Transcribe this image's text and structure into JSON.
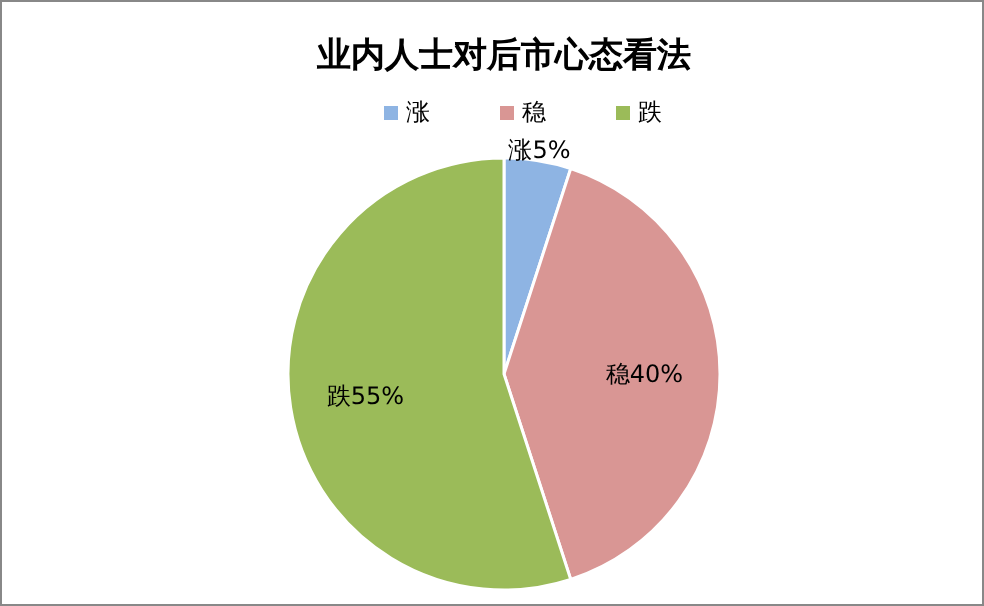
{
  "chart_data": {
    "type": "pie",
    "title": "业内人士对后市心态看法",
    "categories": [
      "涨",
      "稳",
      "跌"
    ],
    "values": [
      5,
      40,
      55
    ],
    "colors": [
      "#8eb4e3",
      "#d99694",
      "#9bbb59"
    ],
    "value_labels": [
      "涨5%",
      "稳40%",
      "跌55%"
    ],
    "legend": "top"
  }
}
